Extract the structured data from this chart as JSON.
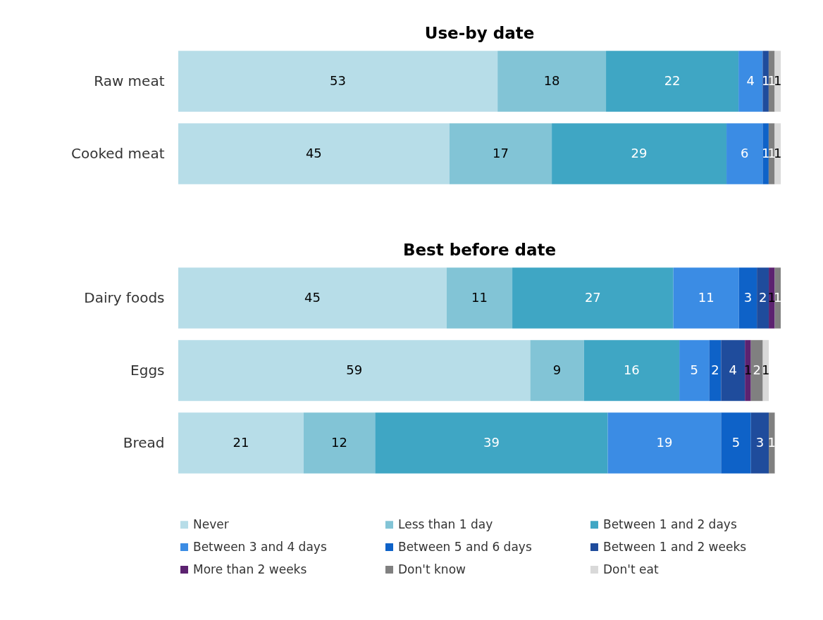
{
  "chart_data": [
    {
      "type": "bar",
      "title": "Use-by date",
      "orientation": "horizontal",
      "stacked": true,
      "data_labels": true,
      "legend": "bottom",
      "categories": [
        "Raw meat",
        "Cooked meat"
      ],
      "series": [
        {
          "name": "Never",
          "color": "#b7dde8",
          "values": [
            53,
            45
          ]
        },
        {
          "name": "Less than 1 day",
          "color": "#82c4d6",
          "values": [
            18,
            17
          ]
        },
        {
          "name": "Between 1 and 2 days",
          "color": "#3fa6c4",
          "values": [
            22,
            29
          ]
        },
        {
          "name": "Between 3 and 4 days",
          "color": "#3b8ce4",
          "values": [
            4,
            6
          ]
        },
        {
          "name": "Between 5 and 6 days",
          "color": "#0e62c8",
          "values": [
            null,
            1
          ]
        },
        {
          "name": "Between 1 and 2 weeks",
          "color": "#1f4c9c",
          "values": [
            1,
            null
          ]
        },
        {
          "name": "Don't know",
          "color": "#808080",
          "values": [
            1,
            1
          ]
        },
        {
          "name": "Don't eat",
          "color": "#d9d9d9",
          "values": [
            1,
            1
          ]
        }
      ]
    },
    {
      "type": "bar",
      "title": "Best before date",
      "orientation": "horizontal",
      "stacked": true,
      "data_labels": true,
      "legend": "bottom",
      "categories": [
        "Dairy foods",
        "Eggs",
        "Bread"
      ],
      "series": [
        {
          "name": "Never",
          "color": "#b7dde8",
          "values": [
            45,
            59,
            21
          ]
        },
        {
          "name": "Less than 1 day",
          "color": "#82c4d6",
          "values": [
            11,
            9,
            12
          ]
        },
        {
          "name": "Between 1 and 2 days",
          "color": "#3fa6c4",
          "values": [
            27,
            16,
            39
          ]
        },
        {
          "name": "Between 3 and 4 days",
          "color": "#3b8ce4",
          "values": [
            11,
            5,
            19
          ]
        },
        {
          "name": "Between 5 and 6 days",
          "color": "#0e62c8",
          "values": [
            3,
            2,
            5
          ]
        },
        {
          "name": "Between 1 and 2 weeks",
          "color": "#1f4c9c",
          "values": [
            2,
            4,
            3
          ]
        },
        {
          "name": "More than 2 weeks",
          "color": "#5c2270",
          "values": [
            1,
            1,
            null
          ]
        },
        {
          "name": "Don't know",
          "color": "#808080",
          "values": [
            1,
            2,
            1
          ]
        },
        {
          "name": "Don't eat",
          "color": "#d9d9d9",
          "values": [
            null,
            1,
            null
          ]
        }
      ]
    }
  ]
}
